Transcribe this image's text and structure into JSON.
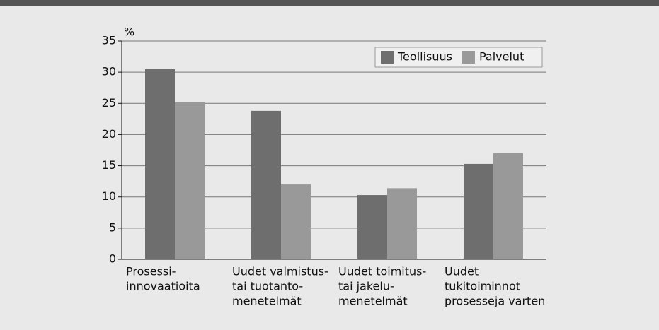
{
  "chart_data": {
    "type": "bar",
    "y_label": "%",
    "categories": [
      [
        "Prosessi-",
        "innovaatioita"
      ],
      [
        "Uudet valmistus-",
        "tai tuotanto-",
        "menetelmät"
      ],
      [
        "Uudet toimitus-",
        "tai jakelu-",
        "menetelmät"
      ],
      [
        "Uudet",
        "tukitoiminnot",
        "prosesseja varten"
      ]
    ],
    "series": [
      {
        "name": "Teollisuus",
        "color": "#6e6e6e",
        "values": [
          30.5,
          23.8,
          10.3,
          15.3
        ]
      },
      {
        "name": "Palvelut",
        "color": "#999999",
        "values": [
          25.2,
          12.0,
          11.4,
          17.0
        ]
      }
    ],
    "ylim": [
      0,
      35
    ],
    "yticks": [
      0,
      5,
      10,
      15,
      20,
      25,
      30,
      35
    ],
    "grid": true,
    "legend": "top-right"
  }
}
